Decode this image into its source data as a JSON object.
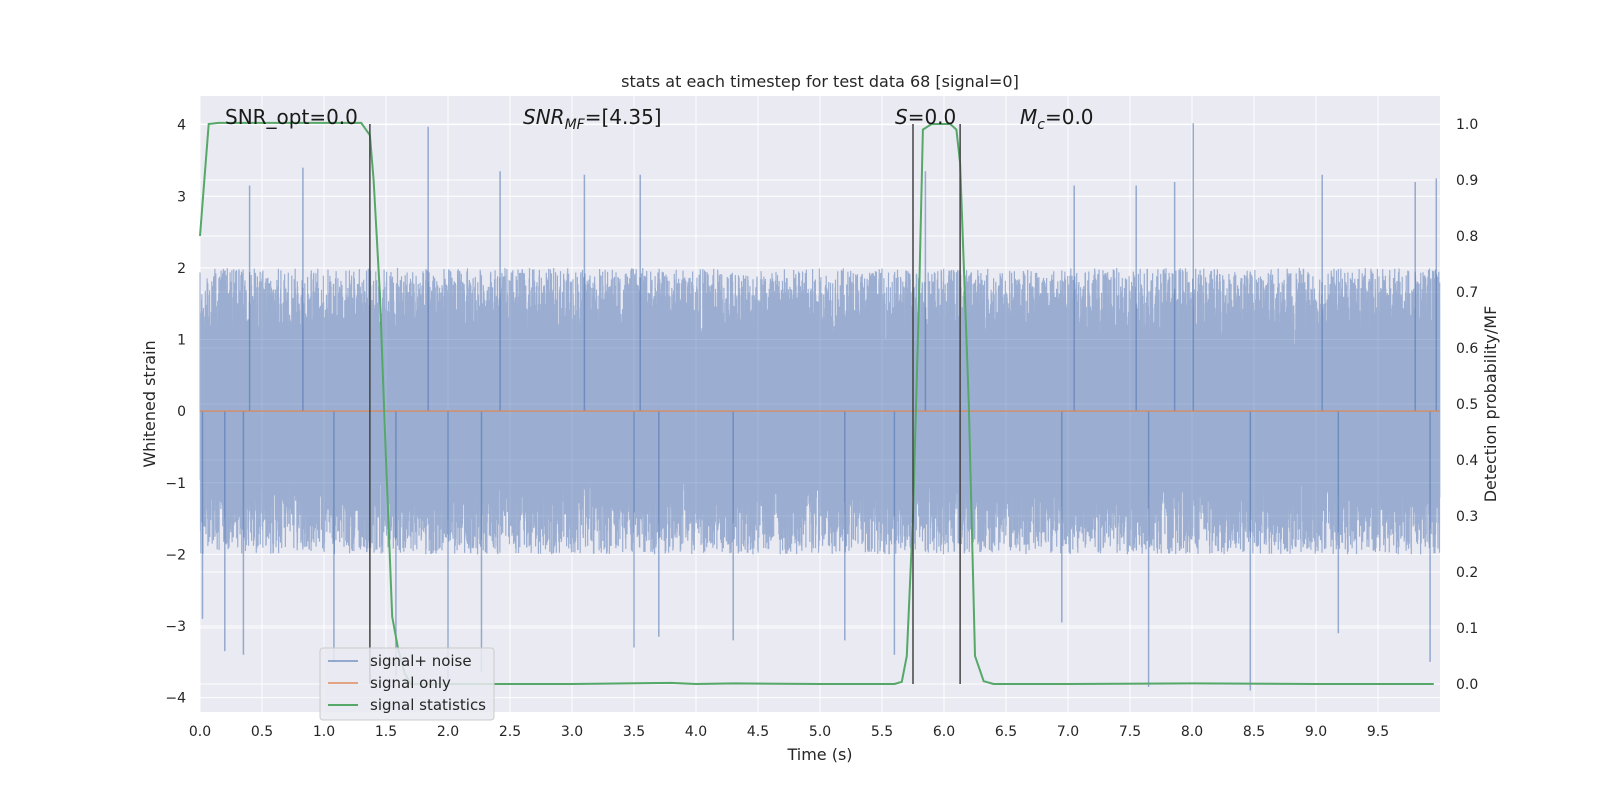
{
  "chart_data": {
    "type": "line",
    "title": "stats at each timestep for test data 68 [signal=0]",
    "xlabel": "Time (s)",
    "ylabel": "Whitened strain",
    "y2label": "Detection probability/MF",
    "xlim": [
      0,
      10
    ],
    "ylim": [
      -4.2,
      4.4
    ],
    "y2lim": [
      -0.05,
      1.05
    ],
    "xticks": [
      "0.0",
      "0.5",
      "1.0",
      "1.5",
      "2.0",
      "2.5",
      "3.0",
      "3.5",
      "4.0",
      "4.5",
      "5.0",
      "5.5",
      "6.0",
      "6.5",
      "7.0",
      "7.5",
      "8.0",
      "8.5",
      "9.0",
      "9.5"
    ],
    "yticks": [
      "4",
      "3",
      "2",
      "1",
      "0",
      "−1",
      "−2",
      "−3",
      "−4"
    ],
    "y2ticks": [
      "1.0",
      "0.9",
      "0.8",
      "0.7",
      "0.6",
      "0.5",
      "0.4",
      "0.3",
      "0.2",
      "0.1",
      "0.0"
    ],
    "grid": true,
    "legend_position": "lower-left",
    "annotations": {
      "snr_opt": "SNR_opt=0.0",
      "snr_mf_sym": "SNR",
      "snr_mf_sub": "MF",
      "snr_mf_val": "=[4.35]",
      "s_sym": "S",
      "s_val": "=0.0",
      "mc_sym": "M",
      "mc_sub": "c",
      "mc_val": "=0.0"
    },
    "vertical_markers_x": [
      1.37,
      5.75,
      6.13
    ],
    "series": [
      {
        "name": "signal+ noise",
        "color": "#4c72b0",
        "kind": "noise",
        "envelope": 2.0,
        "peaks": [
          {
            "x": 0.02,
            "y": -2.9
          },
          {
            "x": 0.2,
            "y": -3.35
          },
          {
            "x": 0.35,
            "y": -3.4
          },
          {
            "x": 0.4,
            "y": 3.15
          },
          {
            "x": 0.83,
            "y": 3.4
          },
          {
            "x": 1.84,
            "y": 3.97
          },
          {
            "x": 1.08,
            "y": -3.5
          },
          {
            "x": 1.58,
            "y": -3.7
          },
          {
            "x": 2.0,
            "y": -3.85
          },
          {
            "x": 2.27,
            "y": -3.65
          },
          {
            "x": 2.42,
            "y": 3.35
          },
          {
            "x": 3.1,
            "y": 3.3
          },
          {
            "x": 3.55,
            "y": 3.3
          },
          {
            "x": 3.5,
            "y": -3.3
          },
          {
            "x": 3.7,
            "y": -3.15
          },
          {
            "x": 4.3,
            "y": -3.2
          },
          {
            "x": 5.2,
            "y": -3.2
          },
          {
            "x": 5.6,
            "y": -3.4
          },
          {
            "x": 5.85,
            "y": 3.35
          },
          {
            "x": 6.95,
            "y": -2.95
          },
          {
            "x": 7.05,
            "y": 3.15
          },
          {
            "x": 7.55,
            "y": 3.15
          },
          {
            "x": 7.65,
            "y": -3.85
          },
          {
            "x": 7.86,
            "y": 3.2
          },
          {
            "x": 8.01,
            "y": 4.02
          },
          {
            "x": 8.47,
            "y": -3.9
          },
          {
            "x": 9.05,
            "y": 3.3
          },
          {
            "x": 9.18,
            "y": -3.1
          },
          {
            "x": 9.8,
            "y": 3.2
          },
          {
            "x": 9.92,
            "y": -3.5
          },
          {
            "x": 9.97,
            "y": 3.25
          }
        ]
      },
      {
        "name": "signal only",
        "color": "#dd8452",
        "kind": "flat",
        "value": 0.0
      },
      {
        "name": "signal statistics",
        "color": "#55a868",
        "axis": "right",
        "x": [
          0.0,
          0.07,
          0.15,
          0.5,
          1.0,
          1.3,
          1.37,
          1.4,
          1.45,
          1.5,
          1.55,
          1.6,
          1.65,
          1.7,
          2.0,
          3.0,
          3.8,
          4.0,
          4.3,
          5.0,
          5.6,
          5.66,
          5.7,
          5.75,
          5.8,
          5.83,
          5.9,
          6.0,
          6.05,
          6.1,
          6.13,
          6.2,
          6.25,
          6.32,
          6.4,
          7.0,
          8.0,
          9.0,
          9.95
        ],
        "values": [
          0.8,
          1.0,
          1.002,
          1.002,
          1.002,
          1.002,
          0.98,
          0.9,
          0.7,
          0.4,
          0.12,
          0.06,
          0.02,
          0.0,
          0.0,
          0.0,
          0.002,
          0.0,
          0.001,
          0.0,
          0.0,
          0.004,
          0.05,
          0.3,
          0.7,
          0.99,
          1.0,
          1.0,
          1.0,
          0.99,
          0.93,
          0.5,
          0.05,
          0.005,
          0.0,
          0.0,
          0.001,
          0.0,
          0.0
        ]
      }
    ]
  }
}
